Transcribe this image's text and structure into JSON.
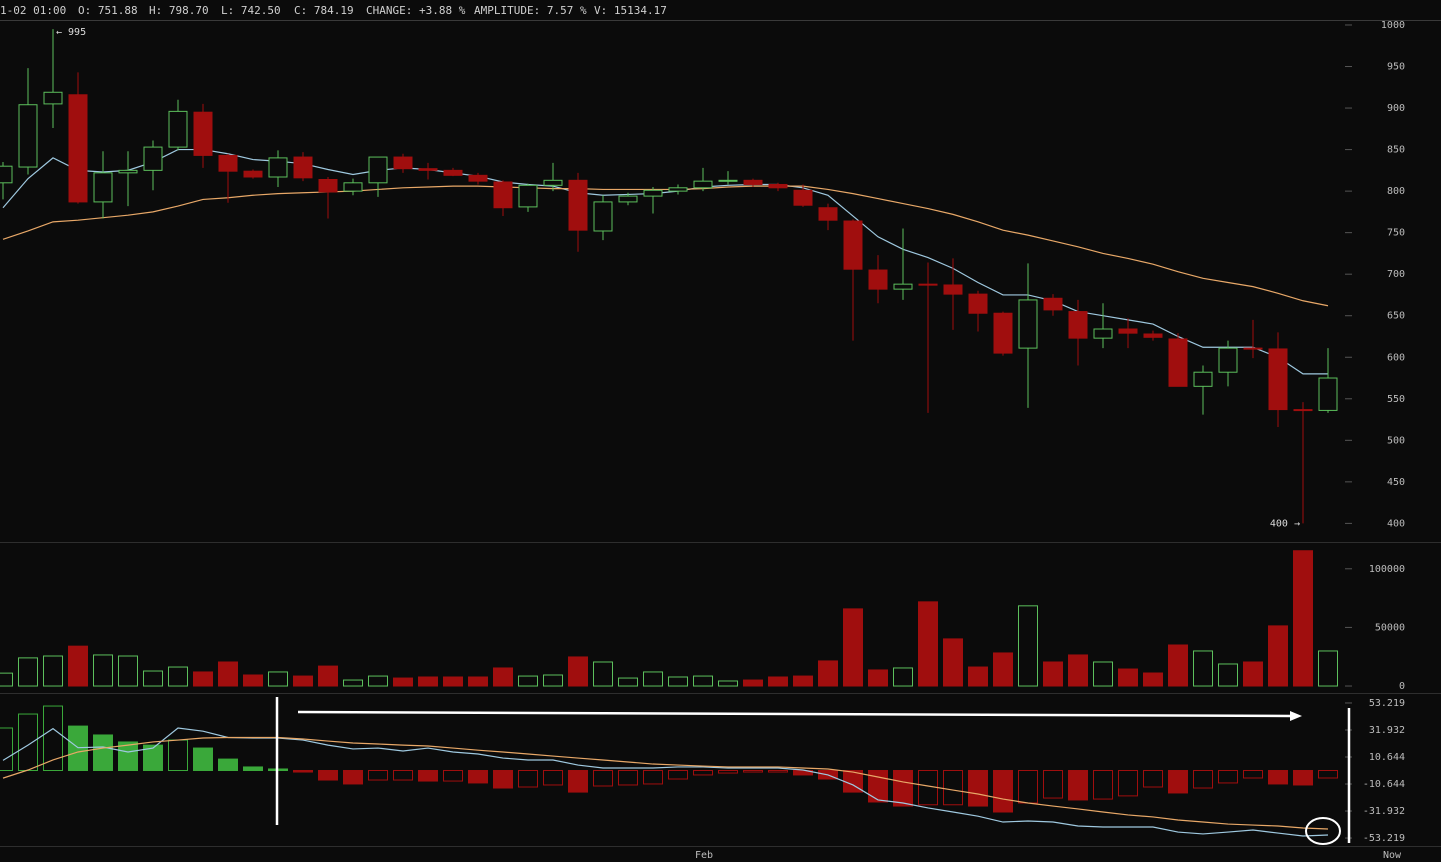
{
  "header": [
    "1-02 01:00",
    "O: 751.88",
    "H: 798.70",
    "L: 742.50",
    "C: 784.19",
    "CHANGE: +3.88 %",
    "AMPLITUDE: 7.57 %",
    "V: 15134.17"
  ],
  "chart_data": [
    {
      "type": "candlestick",
      "up_color": "#5cbf5c",
      "down_color": "#a00e0e",
      "high_label": "← 995",
      "low_label": "400 →",
      "open": [
        810,
        829,
        905,
        916,
        787,
        822,
        825,
        853,
        895,
        843,
        824,
        817,
        841,
        814,
        800,
        810,
        841,
        827,
        825,
        819,
        811,
        781,
        807,
        813,
        752,
        787,
        794,
        800,
        804,
        812,
        813,
        808,
        801,
        780,
        764,
        705,
        682,
        688,
        687,
        676,
        653,
        611,
        671,
        655,
        623,
        634,
        628,
        622,
        565,
        582,
        611,
        610,
        537,
        536
      ],
      "high": [
        835,
        948,
        995,
        943,
        848,
        848,
        861,
        910,
        905,
        845,
        826,
        849,
        847,
        817,
        815,
        841,
        845,
        834,
        828,
        822,
        813,
        809,
        834,
        822,
        795,
        798,
        805,
        808,
        828,
        824,
        815,
        810,
        808,
        785,
        766,
        723,
        755,
        714,
        719,
        680,
        655,
        713,
        676,
        669,
        665,
        647,
        632,
        629,
        590,
        620,
        645,
        630,
        546,
        611
      ],
      "low": [
        790,
        820,
        876,
        785,
        767,
        782,
        801,
        849,
        828,
        786,
        815,
        805,
        812,
        767,
        795,
        793,
        822,
        814,
        818,
        808,
        770,
        775,
        800,
        727,
        741,
        783,
        773,
        796,
        800,
        808,
        805,
        800,
        781,
        753,
        620,
        665,
        669,
        533,
        633,
        631,
        602,
        539,
        650,
        590,
        611,
        611,
        620,
        565,
        531,
        565,
        599,
        516,
        400,
        533
      ],
      "close": [
        830,
        904,
        919,
        787,
        822,
        825,
        853,
        896,
        843,
        824,
        817,
        840,
        816,
        799,
        810,
        841,
        827,
        825,
        819,
        812,
        780,
        807,
        813,
        753,
        787,
        794,
        801,
        804,
        812,
        813,
        808,
        804,
        783,
        765,
        706,
        682,
        688,
        687,
        676,
        653,
        605,
        669,
        657,
        623,
        634,
        629,
        624,
        565,
        582,
        611,
        610,
        537,
        536,
        575
      ],
      "ma": [
        {
          "color": "#9fc9e0",
          "values": [
            780,
            815,
            840,
            825,
            823,
            825,
            835,
            850,
            850,
            845,
            838,
            836,
            833,
            826,
            820,
            825,
            828,
            826,
            822,
            818,
            811,
            808,
            806,
            798,
            795,
            796,
            797,
            800,
            805,
            807,
            808,
            808,
            804,
            795,
            770,
            745,
            730,
            720,
            707,
            690,
            675,
            675,
            668,
            655,
            650,
            645,
            640,
            625,
            612,
            612,
            612,
            600,
            580,
            580
          ]
        },
        {
          "color": "#e8a868",
          "values": [
            742,
            752,
            763,
            765,
            768,
            771,
            775,
            782,
            790,
            792,
            795,
            797,
            798,
            799,
            800,
            802,
            804,
            805,
            806,
            806,
            805,
            804,
            803,
            803,
            802,
            802,
            802,
            802,
            803,
            805,
            806,
            806,
            806,
            802,
            797,
            791,
            785,
            779,
            772,
            763,
            753,
            747,
            740,
            733,
            725,
            719,
            712,
            703,
            695,
            690,
            685,
            677,
            668,
            662
          ]
        }
      ],
      "ylim": [
        380,
        1006
      ],
      "yticks": [
        400,
        450,
        500,
        550,
        600,
        650,
        700,
        750,
        800,
        850,
        900,
        950,
        1000
      ]
    },
    {
      "type": "bar",
      "values": [
        11000,
        24000,
        25600,
        34000,
        26500,
        25600,
        12800,
        16200,
        12000,
        20500,
        9400,
        12000,
        8500,
        17000,
        5100,
        8500,
        6800,
        7700,
        7700,
        7700,
        15400,
        8500,
        9400,
        24800,
        20500,
        6800,
        12000,
        7700,
        8500,
        4300,
        5100,
        7700,
        8500,
        21400,
        65800,
        13700,
        15400,
        71800,
        40200,
        16200,
        28200,
        68400,
        20500,
        26500,
        20500,
        14500,
        11100,
        35000,
        29900,
        18800,
        20500,
        51300,
        115400,
        29900
      ],
      "ylim": [
        -5100,
        122000
      ],
      "yticks": [
        0,
        50000,
        100000
      ]
    },
    {
      "type": "macd",
      "up_color": "#3aa83a",
      "down_color": "#a00e0e",
      "values": [
        33.5,
        44.5,
        50.8,
        35,
        28,
        22.5,
        20,
        24,
        17.7,
        9,
        2.8,
        1.2,
        -1.2,
        -7.5,
        -10.6,
        -7.5,
        -7.5,
        -8.3,
        -8.3,
        -9.8,
        -13.8,
        -13,
        -11.4,
        -17,
        -12.2,
        -11.4,
        -10.6,
        -6.7,
        -3.5,
        -2,
        -1.2,
        -1.2,
        -3.5,
        -6.7,
        -17,
        -24.8,
        -28,
        -27,
        -27,
        -28,
        -32.7,
        -25.6,
        -21.7,
        -23.2,
        -22.5,
        -20,
        -13,
        -17.7,
        -13.8,
        -9.8,
        -5.9,
        -10.6,
        -11.4,
        -5.9
      ],
      "lines": [
        {
          "color": "#9fc9e0",
          "values": [
            8,
            20,
            33,
            18,
            18.5,
            14.6,
            17.7,
            33.5,
            31,
            26,
            25.6,
            25.6,
            24,
            20,
            17,
            17.7,
            15.4,
            17.7,
            14.6,
            13,
            9.8,
            8.3,
            8.3,
            4.3,
            2,
            2,
            2,
            2.8,
            2.8,
            2,
            2,
            2,
            0.4,
            -3.5,
            -11.4,
            -23.2,
            -25.6,
            -29.5,
            -32.7,
            -36,
            -40.6,
            -39.8,
            -40.6,
            -43.7,
            -44.5,
            -44.5,
            -44.5,
            -48.5,
            -50,
            -48.5,
            -46.9,
            -49.3,
            -51.6,
            -50.8
          ]
        },
        {
          "color": "#e8a868",
          "values": [
            -6,
            0.4,
            8.3,
            14.6,
            17.7,
            20,
            22.5,
            24,
            25.6,
            26,
            26,
            26,
            24.8,
            23.2,
            21.7,
            20.9,
            20,
            19.3,
            17.7,
            16,
            14.6,
            13,
            11.4,
            9.8,
            8.3,
            6.7,
            5.1,
            4.3,
            3.5,
            2.8,
            2.8,
            2.8,
            2,
            1.2,
            -1.2,
            -5.1,
            -9,
            -12.2,
            -15.4,
            -18.5,
            -22.5,
            -25.6,
            -28,
            -30.3,
            -32.7,
            -35,
            -36.6,
            -39,
            -40.6,
            -42.2,
            -43,
            -43.7,
            -45.3,
            -46.1
          ]
        }
      ],
      "categories": [
        null,
        null,
        null,
        null,
        null,
        null,
        null,
        null,
        null,
        null,
        null,
        null,
        null,
        null,
        null,
        null,
        null,
        null,
        null,
        null,
        null,
        null,
        null,
        null,
        null,
        null,
        null,
        null,
        "Feb",
        null,
        null,
        null,
        null,
        null,
        null,
        null,
        null,
        null,
        null,
        null,
        null,
        null,
        null,
        null,
        null,
        null,
        null,
        null,
        null,
        null,
        null,
        null,
        null,
        null
      ],
      "now_label": "Now",
      "ylim": [
        -58.7,
        59.5
      ],
      "yticks": [
        53.219,
        31.932,
        10.644,
        -10.644,
        -31.932,
        -53.219
      ]
    }
  ]
}
